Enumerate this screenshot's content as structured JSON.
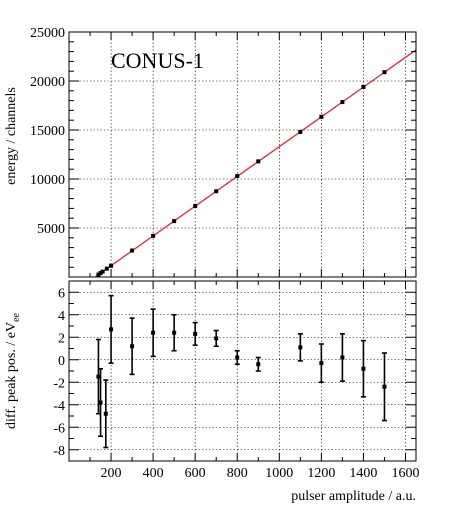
{
  "chart_data": [
    {
      "type": "scatter",
      "annotation": "CONUS-1",
      "ylabel": "energy / channels",
      "xlim": [
        0,
        1650
      ],
      "ylim": [
        0,
        25000
      ],
      "yticks": [
        5000,
        10000,
        15000,
        20000,
        25000
      ],
      "grid": true,
      "colors": {
        "fit": "#e8262c",
        "points": "#000000"
      },
      "fit_line": {
        "slope": 15.18,
        "intercept": -1880
      },
      "points": [
        {
          "x": 140,
          "y": 250
        },
        {
          "x": 150,
          "y": 400
        },
        {
          "x": 160,
          "y": 550
        },
        {
          "x": 180,
          "y": 850
        },
        {
          "x": 200,
          "y": 1150
        },
        {
          "x": 300,
          "y": 2700
        },
        {
          "x": 400,
          "y": 4200
        },
        {
          "x": 500,
          "y": 5700
        },
        {
          "x": 600,
          "y": 7250
        },
        {
          "x": 700,
          "y": 8750
        },
        {
          "x": 800,
          "y": 10300
        },
        {
          "x": 900,
          "y": 11800
        },
        {
          "x": 1100,
          "y": 14800
        },
        {
          "x": 1200,
          "y": 16350
        },
        {
          "x": 1300,
          "y": 17850
        },
        {
          "x": 1400,
          "y": 19400
        },
        {
          "x": 1500,
          "y": 20900
        }
      ]
    },
    {
      "type": "scatter",
      "ylabel_main": "diff. peak pos. / eV",
      "ylabel_sub": "ee",
      "xlabel": "pulser amplitude / a.u.",
      "xlim": [
        0,
        1650
      ],
      "ylim": [
        -9,
        7
      ],
      "xticks": [
        200,
        400,
        600,
        800,
        1000,
        1200,
        1400,
        1600
      ],
      "yticks": [
        -8,
        -6,
        -4,
        -2,
        0,
        2,
        4,
        6
      ],
      "grid": true,
      "points": [
        {
          "x": 140,
          "y": -1.5,
          "err": 3.3
        },
        {
          "x": 150,
          "y": -3.8,
          "err": 3.0
        },
        {
          "x": 175,
          "y": -4.8,
          "err": 3.0
        },
        {
          "x": 200,
          "y": 2.7,
          "err": 3.0
        },
        {
          "x": 300,
          "y": 1.2,
          "err": 2.5
        },
        {
          "x": 400,
          "y": 2.4,
          "err": 2.1
        },
        {
          "x": 500,
          "y": 2.4,
          "err": 1.6
        },
        {
          "x": 600,
          "y": 2.3,
          "err": 1.0
        },
        {
          "x": 700,
          "y": 1.9,
          "err": 0.7
        },
        {
          "x": 800,
          "y": 0.2,
          "err": 0.6
        },
        {
          "x": 900,
          "y": -0.4,
          "err": 0.6
        },
        {
          "x": 1100,
          "y": 1.1,
          "err": 1.2
        },
        {
          "x": 1200,
          "y": -0.3,
          "err": 1.7
        },
        {
          "x": 1300,
          "y": 0.2,
          "err": 2.1
        },
        {
          "x": 1400,
          "y": -0.8,
          "err": 2.5
        },
        {
          "x": 1500,
          "y": -2.4,
          "err": 3.0
        }
      ]
    }
  ]
}
